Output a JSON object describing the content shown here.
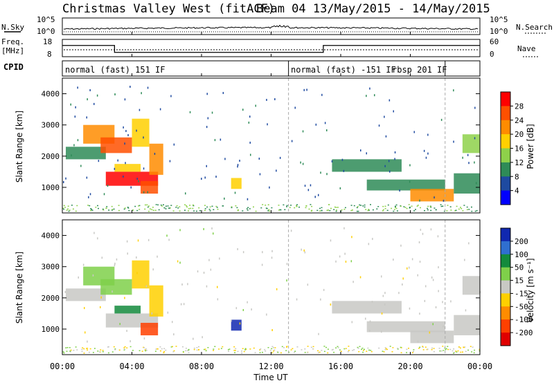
{
  "title": {
    "station": "Christmas Valley West (fitACF)",
    "beam_date": "Beam 04 13/May/2015 - 14/May/2015"
  },
  "noise_panel": {
    "left_label": "N.Sky",
    "right_label": "N.Search",
    "ticks": [
      "10^5",
      "10^0"
    ]
  },
  "freq_panel": {
    "left_label_1": "Freq.",
    "left_label_2": "[MHz]",
    "left_ticks": [
      "18",
      "8"
    ],
    "right_ticks": [
      "60",
      "0"
    ],
    "right_label": "Nave"
  },
  "cpid": {
    "label": "CPID",
    "modes": [
      "normal (fast) 151 IF",
      "normal (fast) -151 IF",
      "rbsp 201 IF"
    ]
  },
  "ylabel": "Slant Range [km]",
  "xlabel": "Time UT",
  "power_colorbar": {
    "label": "Power [dB]",
    "ticks": [
      "28",
      "24",
      "20",
      "16",
      "12",
      "8",
      "4"
    ],
    "colors": [
      "#ff0000",
      "#ff5000",
      "#ff8c00",
      "#ffd000",
      "#8ed14a",
      "#2e8b57",
      "#1e4aa0",
      "#0000ff"
    ]
  },
  "velocity_colorbar": {
    "label": "Velocity [m s⁻¹]",
    "ticks": [
      "200",
      "100",
      "50",
      "15",
      "-15",
      "-50",
      "-100",
      "-200"
    ],
    "colors": [
      "#1028b0",
      "#2f6fd0",
      "#138a3c",
      "#7fd04a",
      "#c8c8c4",
      "#ffd000",
      "#ff8c00",
      "#ff4000",
      "#e00000"
    ]
  },
  "chart_data": {
    "type": "heatmap",
    "x_ticks": [
      "00:00",
      "04:00",
      "08:00",
      "12:00",
      "16:00",
      "20:00",
      "00:00"
    ],
    "x_range_hours": [
      0,
      24
    ],
    "y_ticks": [
      "1000",
      "2000",
      "3000",
      "4000"
    ],
    "y_range_km": [
      180,
      4500
    ],
    "frequency_steps_mhz": [
      {
        "start_h": 0,
        "end_h": 3,
        "freq": 14.5
      },
      {
        "start_h": 3,
        "end_h": 15,
        "freq": 10.5
      },
      {
        "start_h": 15,
        "end_h": 24,
        "freq": 14.5
      }
    ],
    "cpid_boundaries_h": [
      13,
      22
    ],
    "echo_regions": [
      {
        "h0": 0.2,
        "h1": 2.5,
        "r0": 1900,
        "r1": 2300,
        "power": 8,
        "vel": -15
      },
      {
        "h0": 1.2,
        "h1": 3.0,
        "r0": 2400,
        "r1": 3000,
        "power": 20,
        "vel": 15
      },
      {
        "h0": 2.2,
        "h1": 4.0,
        "r0": 2100,
        "r1": 2600,
        "power": 24,
        "vel": 15
      },
      {
        "h0": 2.5,
        "h1": 5.5,
        "r0": 1050,
        "r1": 1500,
        "power": 28,
        "vel": -15
      },
      {
        "h0": 3.0,
        "h1": 4.5,
        "r0": 1500,
        "r1": 1750,
        "power": 16,
        "vel": 50
      },
      {
        "h0": 4.0,
        "h1": 5.0,
        "r0": 2300,
        "r1": 3200,
        "power": 16,
        "vel": -50
      },
      {
        "h0": 5.0,
        "h1": 5.8,
        "r0": 1400,
        "r1": 2400,
        "power": 20,
        "vel": -50
      },
      {
        "h0": 4.5,
        "h1": 5.5,
        "r0": 800,
        "r1": 1200,
        "power": 24,
        "vel": -200
      },
      {
        "h0": 9.7,
        "h1": 10.3,
        "r0": 950,
        "r1": 1300,
        "power": 16,
        "vel": 200
      },
      {
        "h0": 15.5,
        "h1": 19.5,
        "r0": 1500,
        "r1": 1900,
        "power": 8,
        "vel": -15
      },
      {
        "h0": 17.5,
        "h1": 22.0,
        "r0": 900,
        "r1": 1250,
        "power": 8,
        "vel": -15
      },
      {
        "h0": 20.0,
        "h1": 22.5,
        "r0": 550,
        "r1": 950,
        "power": 20,
        "vel": -15
      },
      {
        "h0": 22.5,
        "h1": 24.0,
        "r0": 800,
        "r1": 1450,
        "power": 8,
        "vel": -15
      },
      {
        "h0": 23.0,
        "h1": 24.0,
        "r0": 2100,
        "r1": 2700,
        "power": 12,
        "vel": -15
      }
    ]
  }
}
